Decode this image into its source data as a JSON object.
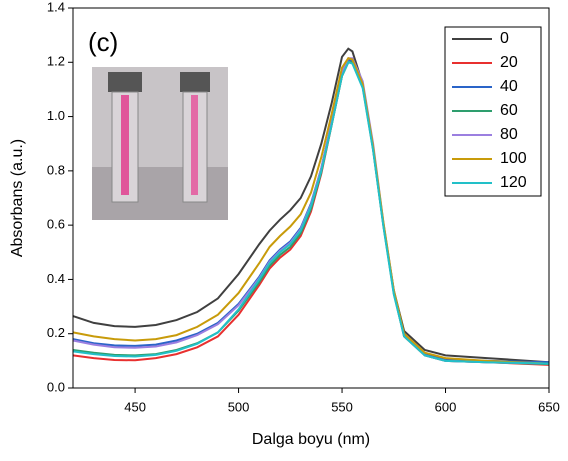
{
  "chart_data": {
    "type": "line",
    "annotation": "(c)",
    "xlabel": "Dalga boyu (nm)",
    "ylabel": "Absorbans (a.u.)",
    "xlim": [
      420,
      650
    ],
    "ylim": [
      0,
      1.4
    ],
    "xticks": [
      450,
      500,
      550,
      600,
      650
    ],
    "yticks": [
      {
        "value": 0,
        "label": "0.0"
      },
      0.2,
      0.4,
      0.6,
      0.8,
      {
        "value": 1,
        "label": "1.0"
      },
      1.2,
      1.4
    ],
    "legend": "upper right",
    "x": [
      420,
      430,
      440,
      450,
      460,
      470,
      480,
      490,
      500,
      510,
      515,
      520,
      525,
      530,
      535,
      540,
      545,
      550,
      553,
      555,
      560,
      565,
      570,
      575,
      580,
      590,
      600,
      620,
      650
    ],
    "series": [
      {
        "name": "0",
        "color": "#404040",
        "values": [
          0.265,
          0.24,
          0.228,
          0.225,
          0.232,
          0.25,
          0.28,
          0.33,
          0.42,
          0.53,
          0.58,
          0.62,
          0.655,
          0.7,
          0.78,
          0.9,
          1.05,
          1.22,
          1.25,
          1.24,
          1.12,
          0.88,
          0.6,
          0.36,
          0.21,
          0.14,
          0.12,
          0.11,
          0.095
        ]
      },
      {
        "name": "20",
        "color": "#e8302f",
        "values": [
          0.12,
          0.11,
          0.103,
          0.102,
          0.11,
          0.125,
          0.15,
          0.19,
          0.27,
          0.38,
          0.44,
          0.48,
          0.51,
          0.56,
          0.65,
          0.79,
          0.97,
          1.15,
          1.2,
          1.2,
          1.11,
          0.88,
          0.6,
          0.35,
          0.19,
          0.12,
          0.1,
          0.095,
          0.085
        ]
      },
      {
        "name": "40",
        "color": "#2a64c8",
        "values": [
          0.18,
          0.165,
          0.157,
          0.155,
          0.16,
          0.175,
          0.2,
          0.24,
          0.31,
          0.41,
          0.47,
          0.51,
          0.54,
          0.59,
          0.68,
          0.81,
          0.98,
          1.16,
          1.21,
          1.205,
          1.115,
          0.885,
          0.605,
          0.355,
          0.195,
          0.125,
          0.105,
          0.1,
          0.095
        ]
      },
      {
        "name": "60",
        "color": "#2e9e6e",
        "values": [
          0.14,
          0.13,
          0.122,
          0.12,
          0.125,
          0.14,
          0.165,
          0.205,
          0.285,
          0.39,
          0.45,
          0.49,
          0.52,
          0.57,
          0.66,
          0.795,
          0.97,
          1.15,
          1.2,
          1.2,
          1.11,
          0.88,
          0.6,
          0.35,
          0.19,
          0.12,
          0.1,
          0.095,
          0.088
        ]
      },
      {
        "name": "80",
        "color": "#9b7fe0",
        "values": [
          0.175,
          0.16,
          0.15,
          0.148,
          0.153,
          0.168,
          0.195,
          0.235,
          0.305,
          0.405,
          0.465,
          0.505,
          0.535,
          0.585,
          0.675,
          0.81,
          0.98,
          1.165,
          1.215,
          1.215,
          1.13,
          0.9,
          0.61,
          0.36,
          0.195,
          0.12,
          0.1,
          0.095,
          0.09
        ]
      },
      {
        "name": "100",
        "color": "#c89b0a",
        "values": [
          0.205,
          0.19,
          0.18,
          0.175,
          0.18,
          0.195,
          0.225,
          0.27,
          0.35,
          0.46,
          0.52,
          0.56,
          0.595,
          0.64,
          0.72,
          0.85,
          1.01,
          1.18,
          1.215,
          1.21,
          1.12,
          0.89,
          0.61,
          0.36,
          0.2,
          0.13,
          0.11,
          0.1,
          0.09
        ]
      },
      {
        "name": "120",
        "color": "#22c0c8",
        "values": [
          0.135,
          0.125,
          0.118,
          0.116,
          0.122,
          0.137,
          0.163,
          0.205,
          0.29,
          0.4,
          0.46,
          0.5,
          0.53,
          0.58,
          0.67,
          0.8,
          0.97,
          1.15,
          1.2,
          1.195,
          1.105,
          0.875,
          0.595,
          0.345,
          0.19,
          0.12,
          0.1,
          0.095,
          0.09
        ]
      }
    ]
  }
}
